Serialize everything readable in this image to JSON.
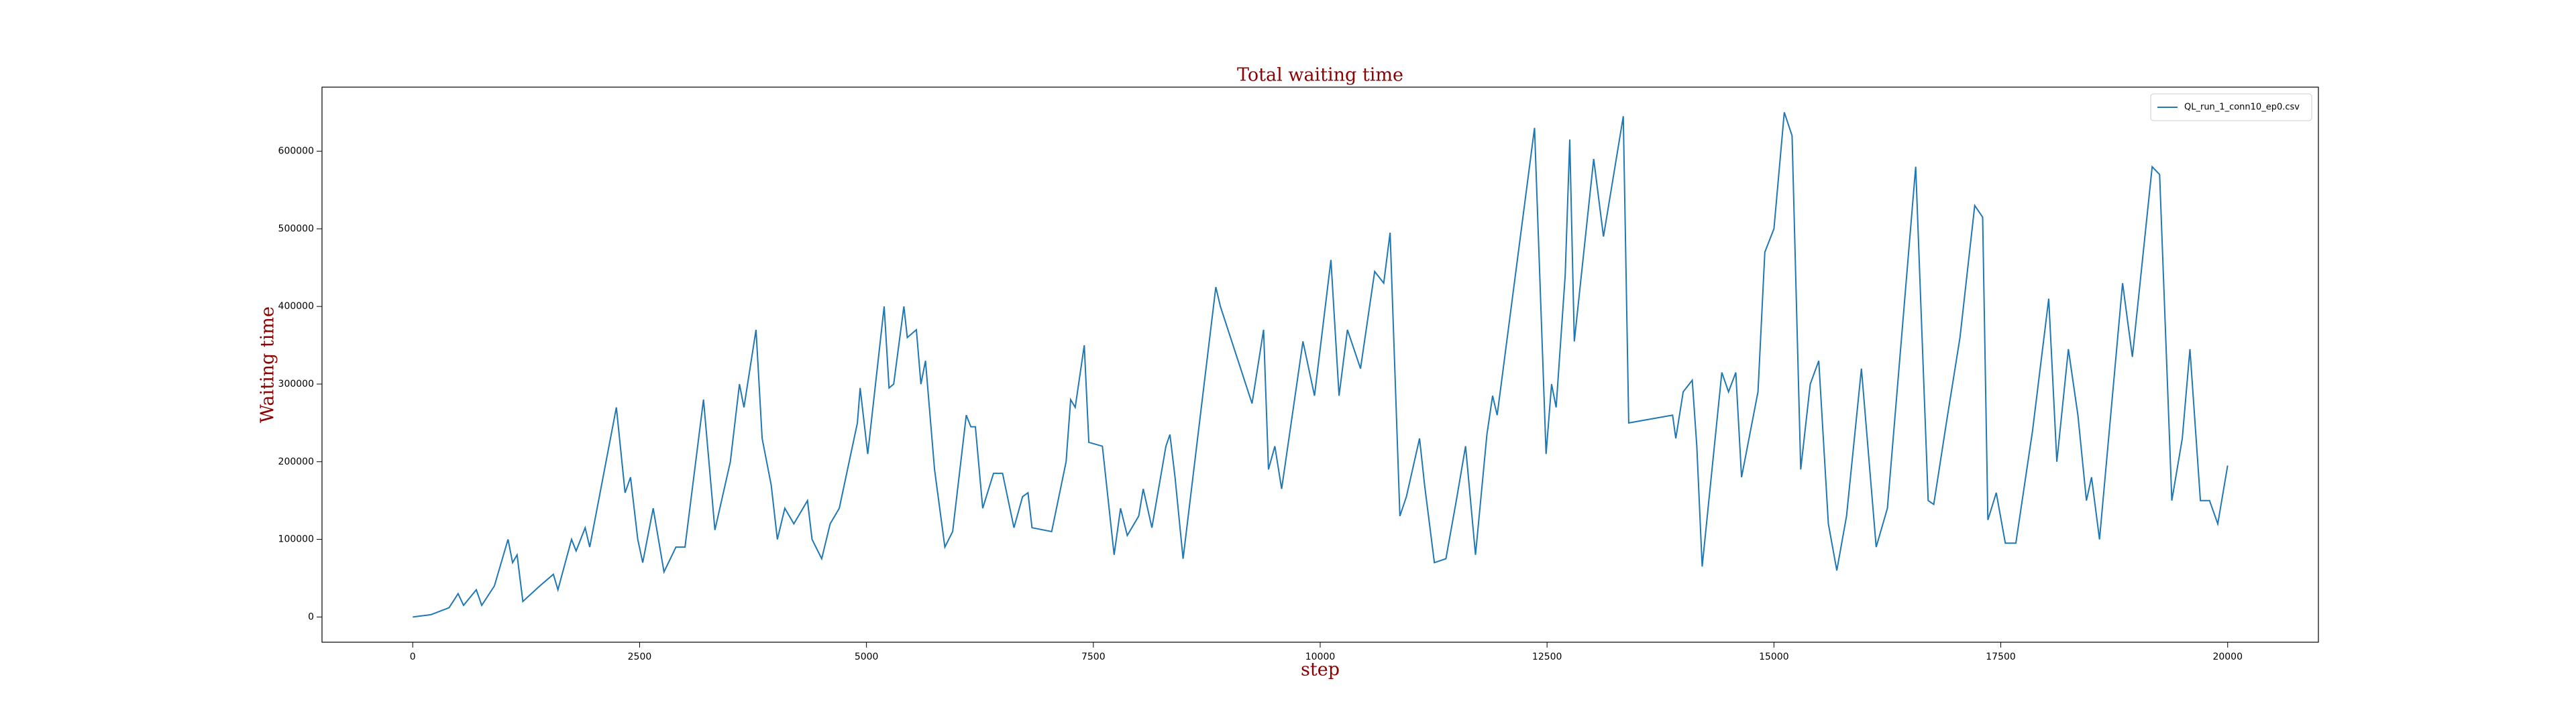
{
  "chart_data": {
    "type": "line",
    "title": "Total waiting time",
    "xlabel": "step",
    "ylabel": "Waiting time",
    "x": [
      0,
      200,
      400,
      500,
      560,
      700,
      760,
      900,
      1050,
      1100,
      1150,
      1213,
      1400,
      1550,
      1600,
      1750,
      1800,
      1900,
      1950,
      2244,
      2340,
      2400,
      2480,
      2534,
      2650,
      2769,
      2900,
      3000,
      3204,
      3330,
      3500,
      3600,
      3650,
      3783,
      3850,
      3950,
      4018,
      4100,
      4200,
      4350,
      4400,
      4507,
      4600,
      4700,
      4900,
      4930,
      5014,
      5195,
      5249,
      5300,
      5412,
      5450,
      5550,
      5600,
      5650,
      5750,
      5864,
      5950,
      6100,
      6150,
      6200,
      6281,
      6400,
      6500,
      6625,
      6720,
      6780,
      6824,
      7041,
      7200,
      7250,
      7300,
      7400,
      7450,
      7600,
      7729,
      7800,
      7874,
      8000,
      8050,
      8145,
      8300,
      8344,
      8400,
      8489,
      8850,
      8900,
      9249,
      9376,
      9430,
      9500,
      9575,
      9810,
      9937,
      10118,
      10208,
      10300,
      10444,
      10600,
      10700,
      10770,
      10878,
      10950,
      11095,
      11150,
      11258,
      11385,
      11500,
      11602,
      11711,
      11837,
      11900,
      11950,
      12362,
      12489,
      12550,
      12600,
      12700,
      12750,
      12800,
      13014,
      13122,
      13340,
      13400,
      13883,
      13919,
      14000,
      14100,
      14150,
      14209,
      14426,
      14500,
      14580,
      14643,
      14824,
      14900,
      15000,
      15114,
      15200,
      15295,
      15400,
      15494,
      15600,
      15693,
      15800,
      15964,
      16127,
      16250,
      16562,
      16700,
      16761,
      16900,
      17050,
      17213,
      17300,
      17358,
      17450,
      17550,
      17666,
      17850,
      18028,
      18118,
      18245,
      18350,
      18444,
      18500,
      18588,
      18842,
      18950,
      19168,
      19250,
      19385,
      19500,
      19584,
      19700,
      19800,
      19891,
      20000
    ],
    "series": [
      {
        "name": "QL_run_1_conn10_ep0.csv",
        "color": "#1f77b4",
        "values": [
          0,
          3000,
          12000,
          30000,
          15000,
          35000,
          15000,
          40000,
          100000,
          70000,
          80000,
          20000,
          40000,
          55000,
          35000,
          100000,
          85000,
          115000,
          90000,
          270000,
          160000,
          180000,
          100000,
          70000,
          140000,
          58000,
          90000,
          90000,
          280000,
          112000,
          200000,
          300000,
          270000,
          370000,
          230000,
          170000,
          100000,
          140000,
          120000,
          150000,
          100000,
          75000,
          120000,
          140000,
          250000,
          295000,
          210000,
          400000,
          295000,
          300000,
          400000,
          360000,
          370000,
          300000,
          330000,
          190000,
          90000,
          110000,
          260000,
          245000,
          245000,
          140000,
          185000,
          185000,
          115000,
          155000,
          160000,
          115000,
          110000,
          200000,
          280000,
          270000,
          350000,
          225000,
          220000,
          80000,
          140000,
          105000,
          130000,
          165000,
          115000,
          220000,
          235000,
          180000,
          75000,
          425000,
          400000,
          275000,
          370000,
          190000,
          220000,
          165000,
          355000,
          285000,
          460000,
          285000,
          370000,
          320000,
          445000,
          430000,
          495000,
          130000,
          155000,
          230000,
          170000,
          70000,
          75000,
          150000,
          220000,
          80000,
          235000,
          285000,
          260000,
          630000,
          210000,
          300000,
          270000,
          440000,
          615000,
          355000,
          590000,
          490000,
          645000,
          250000,
          260000,
          230000,
          290000,
          305000,
          220000,
          65000,
          315000,
          290000,
          315000,
          180000,
          290000,
          470000,
          500000,
          650000,
          620000,
          190000,
          300000,
          330000,
          120000,
          60000,
          130000,
          320000,
          90000,
          140000,
          580000,
          150000,
          145000,
          250000,
          360000,
          530000,
          515000,
          125000,
          160000,
          95000,
          95000,
          240000,
          410000,
          200000,
          345000,
          260000,
          150000,
          180000,
          100000,
          430000,
          335000,
          580000,
          570000,
          150000,
          230000,
          345000,
          150000,
          150000,
          120000,
          195000
        ]
      }
    ],
    "xlim": [
      -1000,
      21000
    ],
    "ylim": [
      -32500,
      682500
    ],
    "xticks": [
      0,
      2500,
      5000,
      7500,
      10000,
      12500,
      15000,
      17500,
      20000
    ],
    "yticks": [
      0,
      100000,
      200000,
      300000,
      400000,
      500000,
      600000
    ],
    "legend": "upper right",
    "grid": false
  }
}
